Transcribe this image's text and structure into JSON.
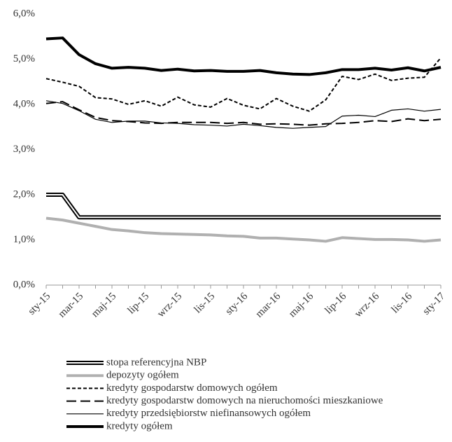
{
  "chart_data": {
    "type": "line",
    "categories": [
      "sty-15",
      null,
      "mar-15",
      null,
      "maj-15",
      null,
      "lip-15",
      null,
      "wrz-15",
      null,
      "lis-15",
      null,
      "sty-16",
      null,
      "mar-16",
      null,
      "maj-16",
      null,
      "lip-16",
      null,
      "wrz-16",
      null,
      "lis-16",
      null,
      "sty-17"
    ],
    "ylim": [
      0,
      6
    ],
    "yticks": [
      {
        "value": 0,
        "label": "0,0%"
      },
      {
        "value": 1,
        "label": "1,0%"
      },
      {
        "value": 2,
        "label": "2,0%"
      },
      {
        "value": 3,
        "label": "3,0%"
      },
      {
        "value": 4,
        "label": "4,0%"
      },
      {
        "value": 5,
        "label": "5,0%"
      },
      {
        "value": 6,
        "label": "6,0%"
      }
    ],
    "grid": false,
    "legend": "bottom",
    "series": [
      {
        "name": "stopa referencyjna NBP",
        "color": "#000000",
        "style": "double",
        "values": [
          2.0,
          2.0,
          1.5,
          1.5,
          1.5,
          1.5,
          1.5,
          1.5,
          1.5,
          1.5,
          1.5,
          1.5,
          1.5,
          1.5,
          1.5,
          1.5,
          1.5,
          1.5,
          1.5,
          1.5,
          1.5,
          1.5,
          1.5,
          1.5,
          1.5
        ]
      },
      {
        "name": "depozyty ogółem",
        "color": "#b0b0b0",
        "style": "thick",
        "values": [
          1.48,
          1.44,
          1.37,
          1.3,
          1.23,
          1.2,
          1.16,
          1.14,
          1.13,
          1.12,
          1.11,
          1.09,
          1.08,
          1.04,
          1.04,
          1.02,
          1.0,
          0.97,
          1.05,
          1.03,
          1.01,
          1.01,
          1.0,
          0.97,
          1.0
        ]
      },
      {
        "name": "kredyty gospodarstw domowych ogółem",
        "color": "#000000",
        "style": "dashed",
        "values": [
          4.57,
          4.49,
          4.4,
          4.15,
          4.12,
          4.0,
          4.08,
          3.96,
          4.16,
          3.99,
          3.94,
          4.13,
          3.98,
          3.9,
          4.13,
          3.96,
          3.85,
          4.1,
          4.62,
          4.55,
          4.67,
          4.53,
          4.58,
          4.6,
          5.03
        ]
      },
      {
        "name": "kredyty gospodarstw domowych na nieruchomości mieszkaniowe",
        "color": "#000000",
        "style": "long-dashed",
        "values": [
          4.02,
          4.06,
          3.88,
          3.71,
          3.64,
          3.62,
          3.59,
          3.58,
          3.6,
          3.6,
          3.6,
          3.58,
          3.6,
          3.56,
          3.57,
          3.56,
          3.54,
          3.57,
          3.58,
          3.6,
          3.64,
          3.62,
          3.68,
          3.64,
          3.67
        ]
      },
      {
        "name": "kredyty przedsiębiorstw niefinansowych ogółem",
        "color": "#000000",
        "style": "thin",
        "values": [
          4.08,
          4.02,
          3.86,
          3.67,
          3.6,
          3.63,
          3.63,
          3.59,
          3.58,
          3.55,
          3.54,
          3.52,
          3.56,
          3.53,
          3.49,
          3.47,
          3.49,
          3.51,
          3.74,
          3.76,
          3.73,
          3.87,
          3.9,
          3.85,
          3.89
        ]
      },
      {
        "name": "kredyty ogółem",
        "color": "#000000",
        "style": "thick",
        "values": [
          5.45,
          5.47,
          5.1,
          4.9,
          4.8,
          4.82,
          4.8,
          4.75,
          4.78,
          4.74,
          4.75,
          4.73,
          4.73,
          4.75,
          4.7,
          4.67,
          4.66,
          4.7,
          4.77,
          4.77,
          4.8,
          4.76,
          4.81,
          4.74,
          4.82
        ]
      }
    ]
  }
}
